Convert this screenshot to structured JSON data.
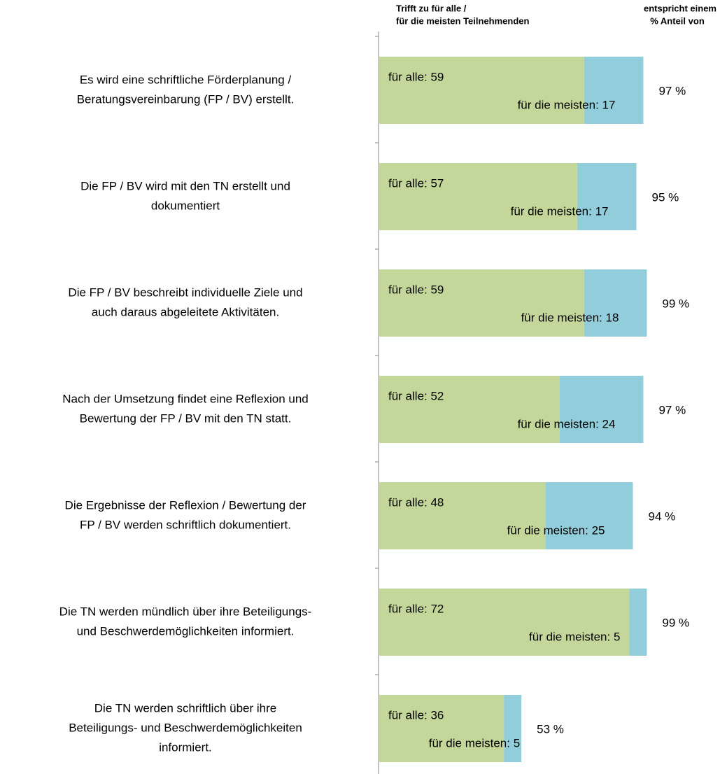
{
  "chart_data": {
    "type": "stacked_barh",
    "header_left": [
      "Trifft zu für alle /",
      "für die meisten Teilnehmenden"
    ],
    "header_right": [
      "entspricht einem",
      "% Anteil von"
    ],
    "categories": [
      [
        "Es wird eine schriftliche Förderplanung /",
        "Beratungsvereinbarung (FP / BV) erstellt."
      ],
      [
        "Die FP / BV wird mit den TN erstellt und",
        "dokumentiert"
      ],
      [
        "Die FP / BV beschreibt individuelle Ziele und",
        "auch daraus abgeleitete Aktivitäten."
      ],
      [
        "Nach der Umsetzung findet eine Reflexion und",
        "Bewertung der FP / BV mit den TN statt."
      ],
      [
        "Die Ergebnisse der Reflexion / Bewertung der",
        "FP / BV werden schriftlich dokumentiert."
      ],
      [
        "Die TN werden mündlich über ihre Beteiligungs-",
        "und Beschwerdemöglichkeiten informiert."
      ],
      [
        "Die TN werden schriftlich über ihre",
        "Beteiligungs- und Beschwerdemöglichkeiten",
        "informiert."
      ]
    ],
    "series": [
      {
        "color": "#c4d79b",
        "values": [
          59,
          57,
          59,
          52,
          48,
          72,
          36
        ],
        "value_labels": [
          "für alle: 59",
          "für alle: 57",
          "für alle: 59",
          "für alle: 52",
          "für alle: 48",
          "für alle: 72",
          "für alle: 36"
        ]
      },
      {
        "color": "#92cddc",
        "values": [
          17,
          17,
          18,
          24,
          25,
          5,
          5
        ],
        "value_labels": [
          "für die meisten:  17",
          "für die meisten:  17",
          "für die meisten:  18",
          "für die meisten:  24",
          "für die meisten:  25",
          "für die meisten:  5",
          "für die meisten: 5"
        ]
      }
    ],
    "share": {
      "values": [
        97,
        95,
        99,
        97,
        94,
        99,
        53
      ],
      "value_labels": [
        "97 %",
        "95 %",
        "99 %",
        "97 %",
        "94 %",
        "99 %",
        "53 %"
      ]
    },
    "xlim": [
      0,
      98
    ]
  }
}
